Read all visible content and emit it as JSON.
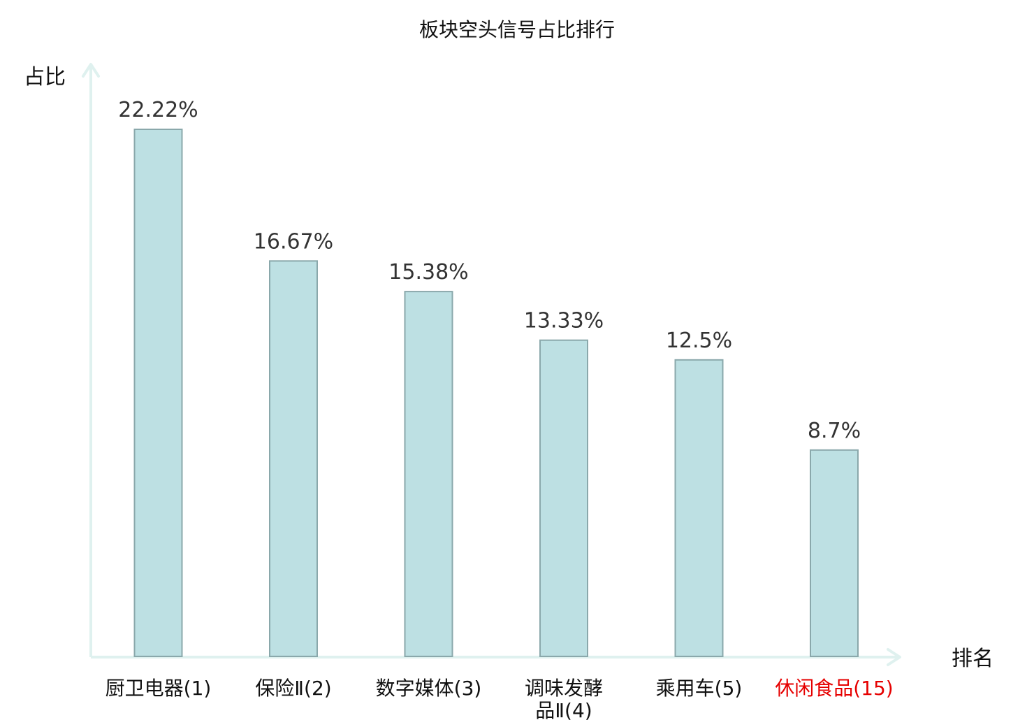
{
  "chart_data": {
    "type": "bar",
    "title": "板块空头信号占比排行",
    "ylabel": "占比",
    "xlabel": "排名",
    "categories": [
      {
        "lines": [
          "厨卫电器(1)"
        ],
        "highlight": false
      },
      {
        "lines": [
          "保险Ⅱ(2)"
        ],
        "highlight": false
      },
      {
        "lines": [
          "数字媒体(3)"
        ],
        "highlight": false
      },
      {
        "lines": [
          "调味发酵",
          "品Ⅱ(4)"
        ],
        "highlight": false
      },
      {
        "lines": [
          "乘用车(5)"
        ],
        "highlight": false
      },
      {
        "lines": [
          "休闲食品(15)"
        ],
        "highlight": true
      }
    ],
    "values": [
      22.22,
      16.67,
      15.38,
      13.33,
      12.5,
      8.7
    ],
    "value_labels": [
      "22.22%",
      "16.67%",
      "15.38%",
      "13.33%",
      "12.5%",
      "8.7%"
    ],
    "unit": "%",
    "ylim": [
      0,
      22.22
    ],
    "grid": false,
    "colors": {
      "bar_fill": "#bde0e3",
      "bar_stroke": "#8aa8ab",
      "axis": "#dff1ef",
      "text": "#111111",
      "value_text": "#333333",
      "highlight_text": "#e60000"
    }
  }
}
